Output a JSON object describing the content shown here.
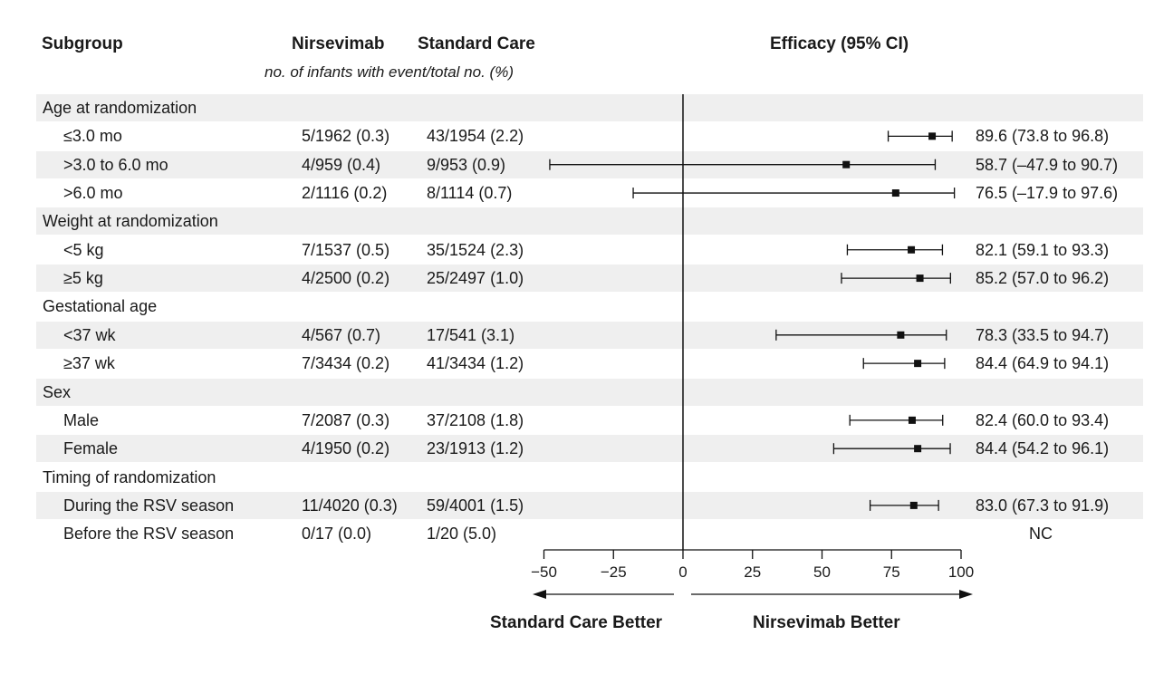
{
  "headers": {
    "subgroup": "Subgroup",
    "nirsevimab": "Nirsevimab",
    "standard_care": "Standard Care",
    "efficacy": "Efficacy (95% CI)",
    "subheader": "no. of infants with event/total no. (%)"
  },
  "chart_data": {
    "type": "forest",
    "title": "",
    "xlabel": "",
    "xlim": [
      -50,
      100
    ],
    "xticks": [
      "−50",
      "−25",
      "0",
      "25",
      "50",
      "75",
      "100"
    ],
    "favors_left": "Standard Care Better",
    "favors_right": "Nirsevimab Better",
    "rows": [
      {
        "kind": "group",
        "label": "Age at randomization"
      },
      {
        "kind": "item",
        "label": "≤3.0 mo",
        "nirsevimab": "5/1962 (0.3)",
        "standard_care": "43/1954 (2.2)",
        "estimate": 89.6,
        "lower": 73.8,
        "upper": 96.8,
        "efficacy_text": "89.6 (73.8 to 96.8)"
      },
      {
        "kind": "item",
        "label": ">3.0 to 6.0 mo",
        "nirsevimab": "4/959 (0.4)",
        "standard_care": "9/953 (0.9)",
        "estimate": 58.7,
        "lower": -47.9,
        "upper": 90.7,
        "efficacy_text": "58.7 (–47.9 to 90.7)"
      },
      {
        "kind": "item",
        "label": ">6.0 mo",
        "nirsevimab": "2/1116 (0.2)",
        "standard_care": "8/1114 (0.7)",
        "estimate": 76.5,
        "lower": -17.9,
        "upper": 97.6,
        "efficacy_text": "76.5 (–17.9 to 97.6)"
      },
      {
        "kind": "group",
        "label": "Weight at randomization"
      },
      {
        "kind": "item",
        "label": "<5 kg",
        "nirsevimab": "7/1537 (0.5)",
        "standard_care": "35/1524 (2.3)",
        "estimate": 82.1,
        "lower": 59.1,
        "upper": 93.3,
        "efficacy_text": "82.1 (59.1 to 93.3)"
      },
      {
        "kind": "item",
        "label": "≥5 kg",
        "nirsevimab": "4/2500 (0.2)",
        "standard_care": "25/2497 (1.0)",
        "estimate": 85.2,
        "lower": 57.0,
        "upper": 96.2,
        "efficacy_text": "85.2 (57.0 to 96.2)"
      },
      {
        "kind": "group",
        "label": "Gestational age"
      },
      {
        "kind": "item",
        "label": "<37 wk",
        "nirsevimab": "4/567 (0.7)",
        "standard_care": "17/541 (3.1)",
        "estimate": 78.3,
        "lower": 33.5,
        "upper": 94.7,
        "efficacy_text": "78.3 (33.5 to 94.7)"
      },
      {
        "kind": "item",
        "label": "≥37 wk",
        "nirsevimab": "7/3434 (0.2)",
        "standard_care": "41/3434 (1.2)",
        "estimate": 84.4,
        "lower": 64.9,
        "upper": 94.1,
        "efficacy_text": "84.4 (64.9 to 94.1)"
      },
      {
        "kind": "group",
        "label": "Sex"
      },
      {
        "kind": "item",
        "label": "Male",
        "nirsevimab": "7/2087 (0.3)",
        "standard_care": "37/2108 (1.8)",
        "estimate": 82.4,
        "lower": 60.0,
        "upper": 93.4,
        "efficacy_text": "82.4 (60.0 to 93.4)"
      },
      {
        "kind": "item",
        "label": "Female",
        "nirsevimab": "4/1950 (0.2)",
        "standard_care": "23/1913 (1.2)",
        "estimate": 84.4,
        "lower": 54.2,
        "upper": 96.1,
        "efficacy_text": "84.4 (54.2 to 96.1)"
      },
      {
        "kind": "group",
        "label": "Timing of randomization"
      },
      {
        "kind": "item",
        "label": "During the RSV season",
        "nirsevimab": "11/4020 (0.3)",
        "standard_care": "59/4001 (1.5)",
        "estimate": 83.0,
        "lower": 67.3,
        "upper": 91.9,
        "efficacy_text": "83.0 (67.3 to 91.9)"
      },
      {
        "kind": "item",
        "label": "Before the RSV season",
        "nirsevimab": "0/17 (0.0)",
        "standard_care": "1/20 (5.0)",
        "estimate": null,
        "lower": null,
        "upper": null,
        "efficacy_text": "NC"
      }
    ]
  }
}
